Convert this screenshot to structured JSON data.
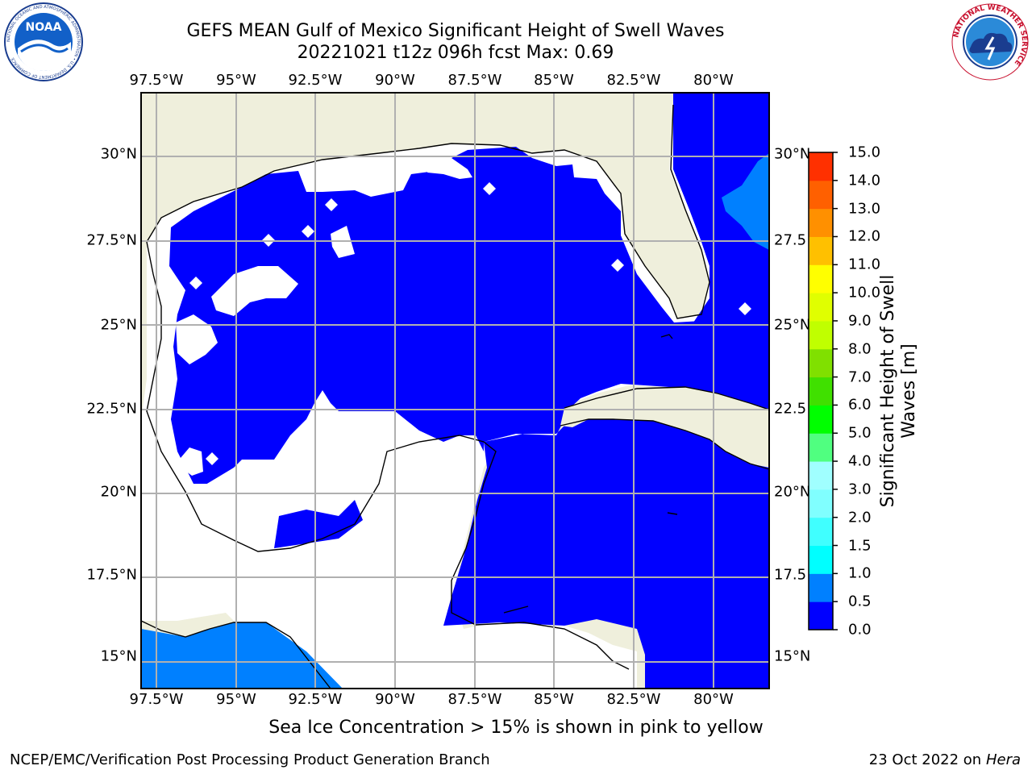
{
  "header": {
    "title_line1": "GEFS MEAN Gulf of Mexico Significant Height of Swell Waves",
    "title_line2": "20221021 t12z 096h fcst   Max: 0.69"
  },
  "logos": {
    "noaa_text": "NOAA",
    "noaa_ring_text": "NATIONAL OCEANIC AND ATMOSPHERIC ADMINISTRATION • U.S. DEPARTMENT OF COMMERCE",
    "nws_ring_text": "NATIONAL WEATHER SERVICE"
  },
  "map": {
    "lon_ticks": [
      "97.5°W",
      "95°W",
      "92.5°W",
      "90°W",
      "87.5°W",
      "85°W",
      "82.5°W",
      "80°W"
    ],
    "lat_ticks_left": [
      "30°N",
      "27.5°N",
      "25°N",
      "22.5°N",
      "20°N",
      "17.5°N",
      "15°N"
    ],
    "lat_ticks_right": [
      "30°N",
      "27.5",
      "25°N",
      "22.5",
      "20°N",
      "17.5",
      "15°N"
    ],
    "lon_range": [
      -98,
      -78.2
    ],
    "lat_range": [
      14,
      31.8
    ],
    "land_color": "#efefdc",
    "no_swell_color": "#ffffff",
    "low_swell_color": "#0000ff",
    "mid_swell_color": "#0080ff"
  },
  "colorbar": {
    "label": "Significant Height of Swell Waves [m]",
    "label_line1": "Significant Height of Swell",
    "label_line2": "Waves [m]",
    "ticks": [
      "0.0",
      "0.5",
      "1.0",
      "1.5",
      "2.0",
      "3.0",
      "4.0",
      "5.0",
      "6.0",
      "7.0",
      "8.0",
      "9.0",
      "10.0",
      "11.0",
      "12.0",
      "13.0",
      "14.0",
      "15.0"
    ],
    "colors": [
      "#0000ff",
      "#0080ff",
      "#00ffff",
      "#40ffff",
      "#80ffff",
      "#a0ffff",
      "#50ff80",
      "#00ff00",
      "#40e000",
      "#80e000",
      "#c0ff00",
      "#e0ff00",
      "#ffff00",
      "#ffc000",
      "#ff9000",
      "#ff6000",
      "#ff3000",
      "#ff0000"
    ]
  },
  "footer": {
    "note": "Sea Ice Concentration > 15% is shown in pink to yellow",
    "credit_left": "NCEP/EMC/Verification Post Processing Product Generation Branch",
    "credit_right_prefix": "23 Oct 2022 on ",
    "credit_right_host": "Hera"
  }
}
